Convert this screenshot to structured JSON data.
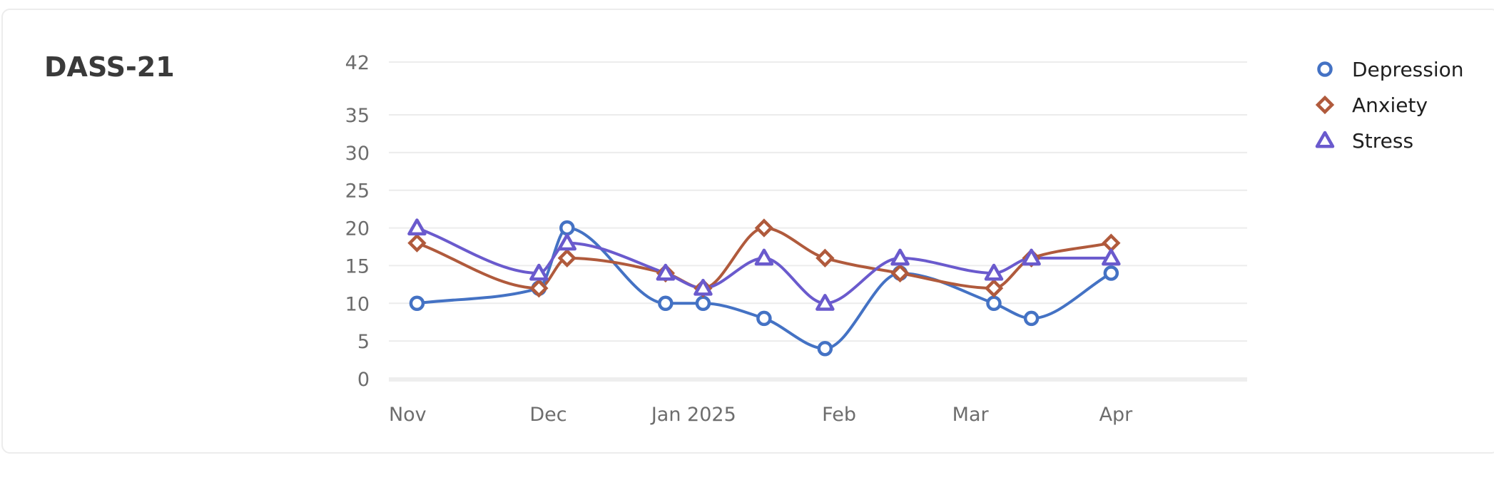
{
  "card": {
    "title": "DASS-21"
  },
  "chart_data": {
    "type": "line",
    "title": "DASS-21",
    "xlabel": "",
    "ylabel": "",
    "x_ticks": [
      {
        "label": "Nov",
        "day": 0
      },
      {
        "label": "Dec",
        "day": 30
      },
      {
        "label": "Jan 2025",
        "day": 61
      },
      {
        "label": "Feb",
        "day": 92
      },
      {
        "label": "Mar",
        "day": 120
      },
      {
        "label": "Apr",
        "day": 151
      }
    ],
    "y_ticks": [
      0,
      5,
      10,
      15,
      20,
      25,
      30,
      35,
      42
    ],
    "ylim": [
      0,
      42
    ],
    "xlim_days": [
      -4,
      179
    ],
    "grid": true,
    "smooth": true,
    "legend_position": "top-right",
    "series": [
      {
        "name": "Depression",
        "color": "#4472c4",
        "marker": "circle",
        "points": [
          {
            "day": 2,
            "value": 10
          },
          {
            "day": 28,
            "value": 12
          },
          {
            "day": 34,
            "value": 20
          },
          {
            "day": 55,
            "value": 10
          },
          {
            "day": 63,
            "value": 10
          },
          {
            "day": 76,
            "value": 8
          },
          {
            "day": 89,
            "value": 4
          },
          {
            "day": 105,
            "value": 14
          },
          {
            "day": 125,
            "value": 10
          },
          {
            "day": 133,
            "value": 8
          },
          {
            "day": 150,
            "value": 14
          }
        ]
      },
      {
        "name": "Anxiety",
        "color": "#b05a3c",
        "marker": "diamond",
        "points": [
          {
            "day": 2,
            "value": 18
          },
          {
            "day": 28,
            "value": 12
          },
          {
            "day": 34,
            "value": 16
          },
          {
            "day": 55,
            "value": 14
          },
          {
            "day": 63,
            "value": 12
          },
          {
            "day": 76,
            "value": 20
          },
          {
            "day": 89,
            "value": 16
          },
          {
            "day": 105,
            "value": 14
          },
          {
            "day": 125,
            "value": 12
          },
          {
            "day": 133,
            "value": 16
          },
          {
            "day": 150,
            "value": 18
          }
        ]
      },
      {
        "name": "Stress",
        "color": "#6a5acd",
        "marker": "triangle",
        "points": [
          {
            "day": 2,
            "value": 20
          },
          {
            "day": 28,
            "value": 14
          },
          {
            "day": 34,
            "value": 18
          },
          {
            "day": 55,
            "value": 14
          },
          {
            "day": 63,
            "value": 12
          },
          {
            "day": 76,
            "value": 16
          },
          {
            "day": 89,
            "value": 10
          },
          {
            "day": 105,
            "value": 16
          },
          {
            "day": 125,
            "value": 14
          },
          {
            "day": 133,
            "value": 16
          },
          {
            "day": 150,
            "value": 16
          }
        ]
      }
    ]
  }
}
